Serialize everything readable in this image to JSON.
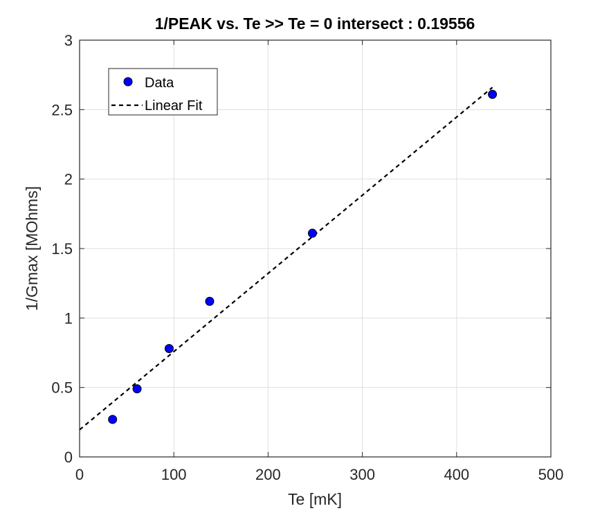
{
  "chart_data": {
    "type": "scatter",
    "title": "1/PEAK vs. Te >> Te = 0 intersect : 0.19556",
    "xlabel": "Te [mK]",
    "ylabel": "1/Gmax [MOhms]",
    "xlim": [
      0,
      500
    ],
    "ylim": [
      0,
      3
    ],
    "xticks": [
      0,
      100,
      200,
      300,
      400,
      500
    ],
    "yticks": [
      0,
      0.5,
      1,
      1.5,
      2,
      2.5,
      3
    ],
    "xtick_labels": [
      "0",
      "100",
      "200",
      "300",
      "400",
      "500"
    ],
    "ytick_labels": [
      "0",
      "0.5",
      "1",
      "1.5",
      "2",
      "2.5",
      "3"
    ],
    "grid": true,
    "legend_position": "top-left",
    "series": [
      {
        "name": "Data",
        "kind": "markers",
        "color": "#0000ff",
        "x": [
          35,
          61,
          95,
          138,
          247,
          438
        ],
        "y": [
          0.27,
          0.49,
          0.78,
          1.12,
          1.61,
          2.61
        ]
      },
      {
        "name": "Linear Fit",
        "kind": "dashed-line",
        "color": "#000000",
        "x": [
          0,
          438
        ],
        "y": [
          0.19556,
          2.66
        ]
      }
    ]
  }
}
